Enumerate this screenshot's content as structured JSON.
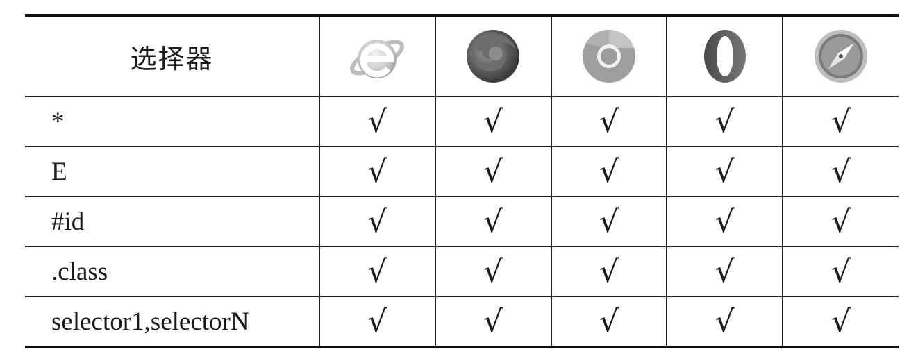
{
  "table": {
    "header": {
      "label": "选择器",
      "browser_icons": [
        "ie-icon",
        "firefox-icon",
        "chrome-icon",
        "opera-icon",
        "safari-icon"
      ]
    },
    "rows": [
      {
        "selector": "*",
        "marks": [
          "√",
          "√",
          "√",
          "√",
          "√"
        ]
      },
      {
        "selector": "E",
        "marks": [
          "√",
          "√",
          "√",
          "√",
          "√"
        ]
      },
      {
        "selector": "#id",
        "marks": [
          "√",
          "√",
          "√",
          "√",
          "√"
        ]
      },
      {
        "selector": ".class",
        "marks": [
          "√",
          "√",
          "√",
          "√",
          "√"
        ]
      },
      {
        "selector": "selector1,selectorN",
        "marks": [
          "√",
          "√",
          "√",
          "√",
          "√"
        ]
      }
    ]
  }
}
